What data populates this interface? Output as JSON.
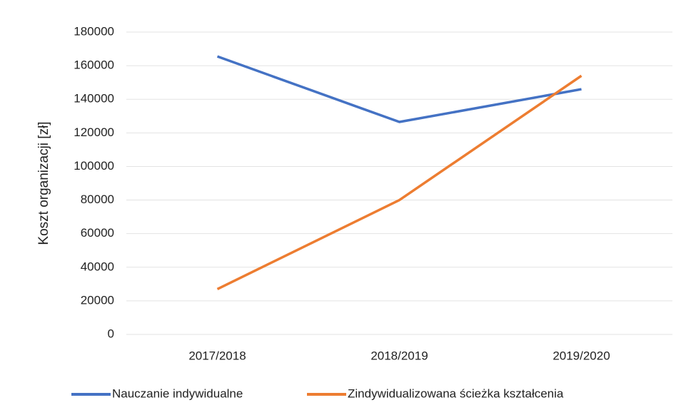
{
  "chart_data": {
    "type": "line",
    "y_label": "Koszt organizacji [zł]",
    "categories": [
      "2017/2018",
      "2018/2019",
      "2019/2020"
    ],
    "series": [
      {
        "name": "Nauczanie indywidualne",
        "color": "#4472c4",
        "values": [
          165500,
          126500,
          146000
        ]
      },
      {
        "name": "Zindywidualizowana ścieżka kształcenia",
        "color": "#ed7d31",
        "values": [
          27000,
          80000,
          154000
        ]
      }
    ],
    "ylim": [
      0,
      180000
    ],
    "yticks": [
      0,
      20000,
      40000,
      60000,
      80000,
      100000,
      120000,
      140000,
      160000,
      180000
    ],
    "grid": true,
    "legend": "bottom"
  }
}
